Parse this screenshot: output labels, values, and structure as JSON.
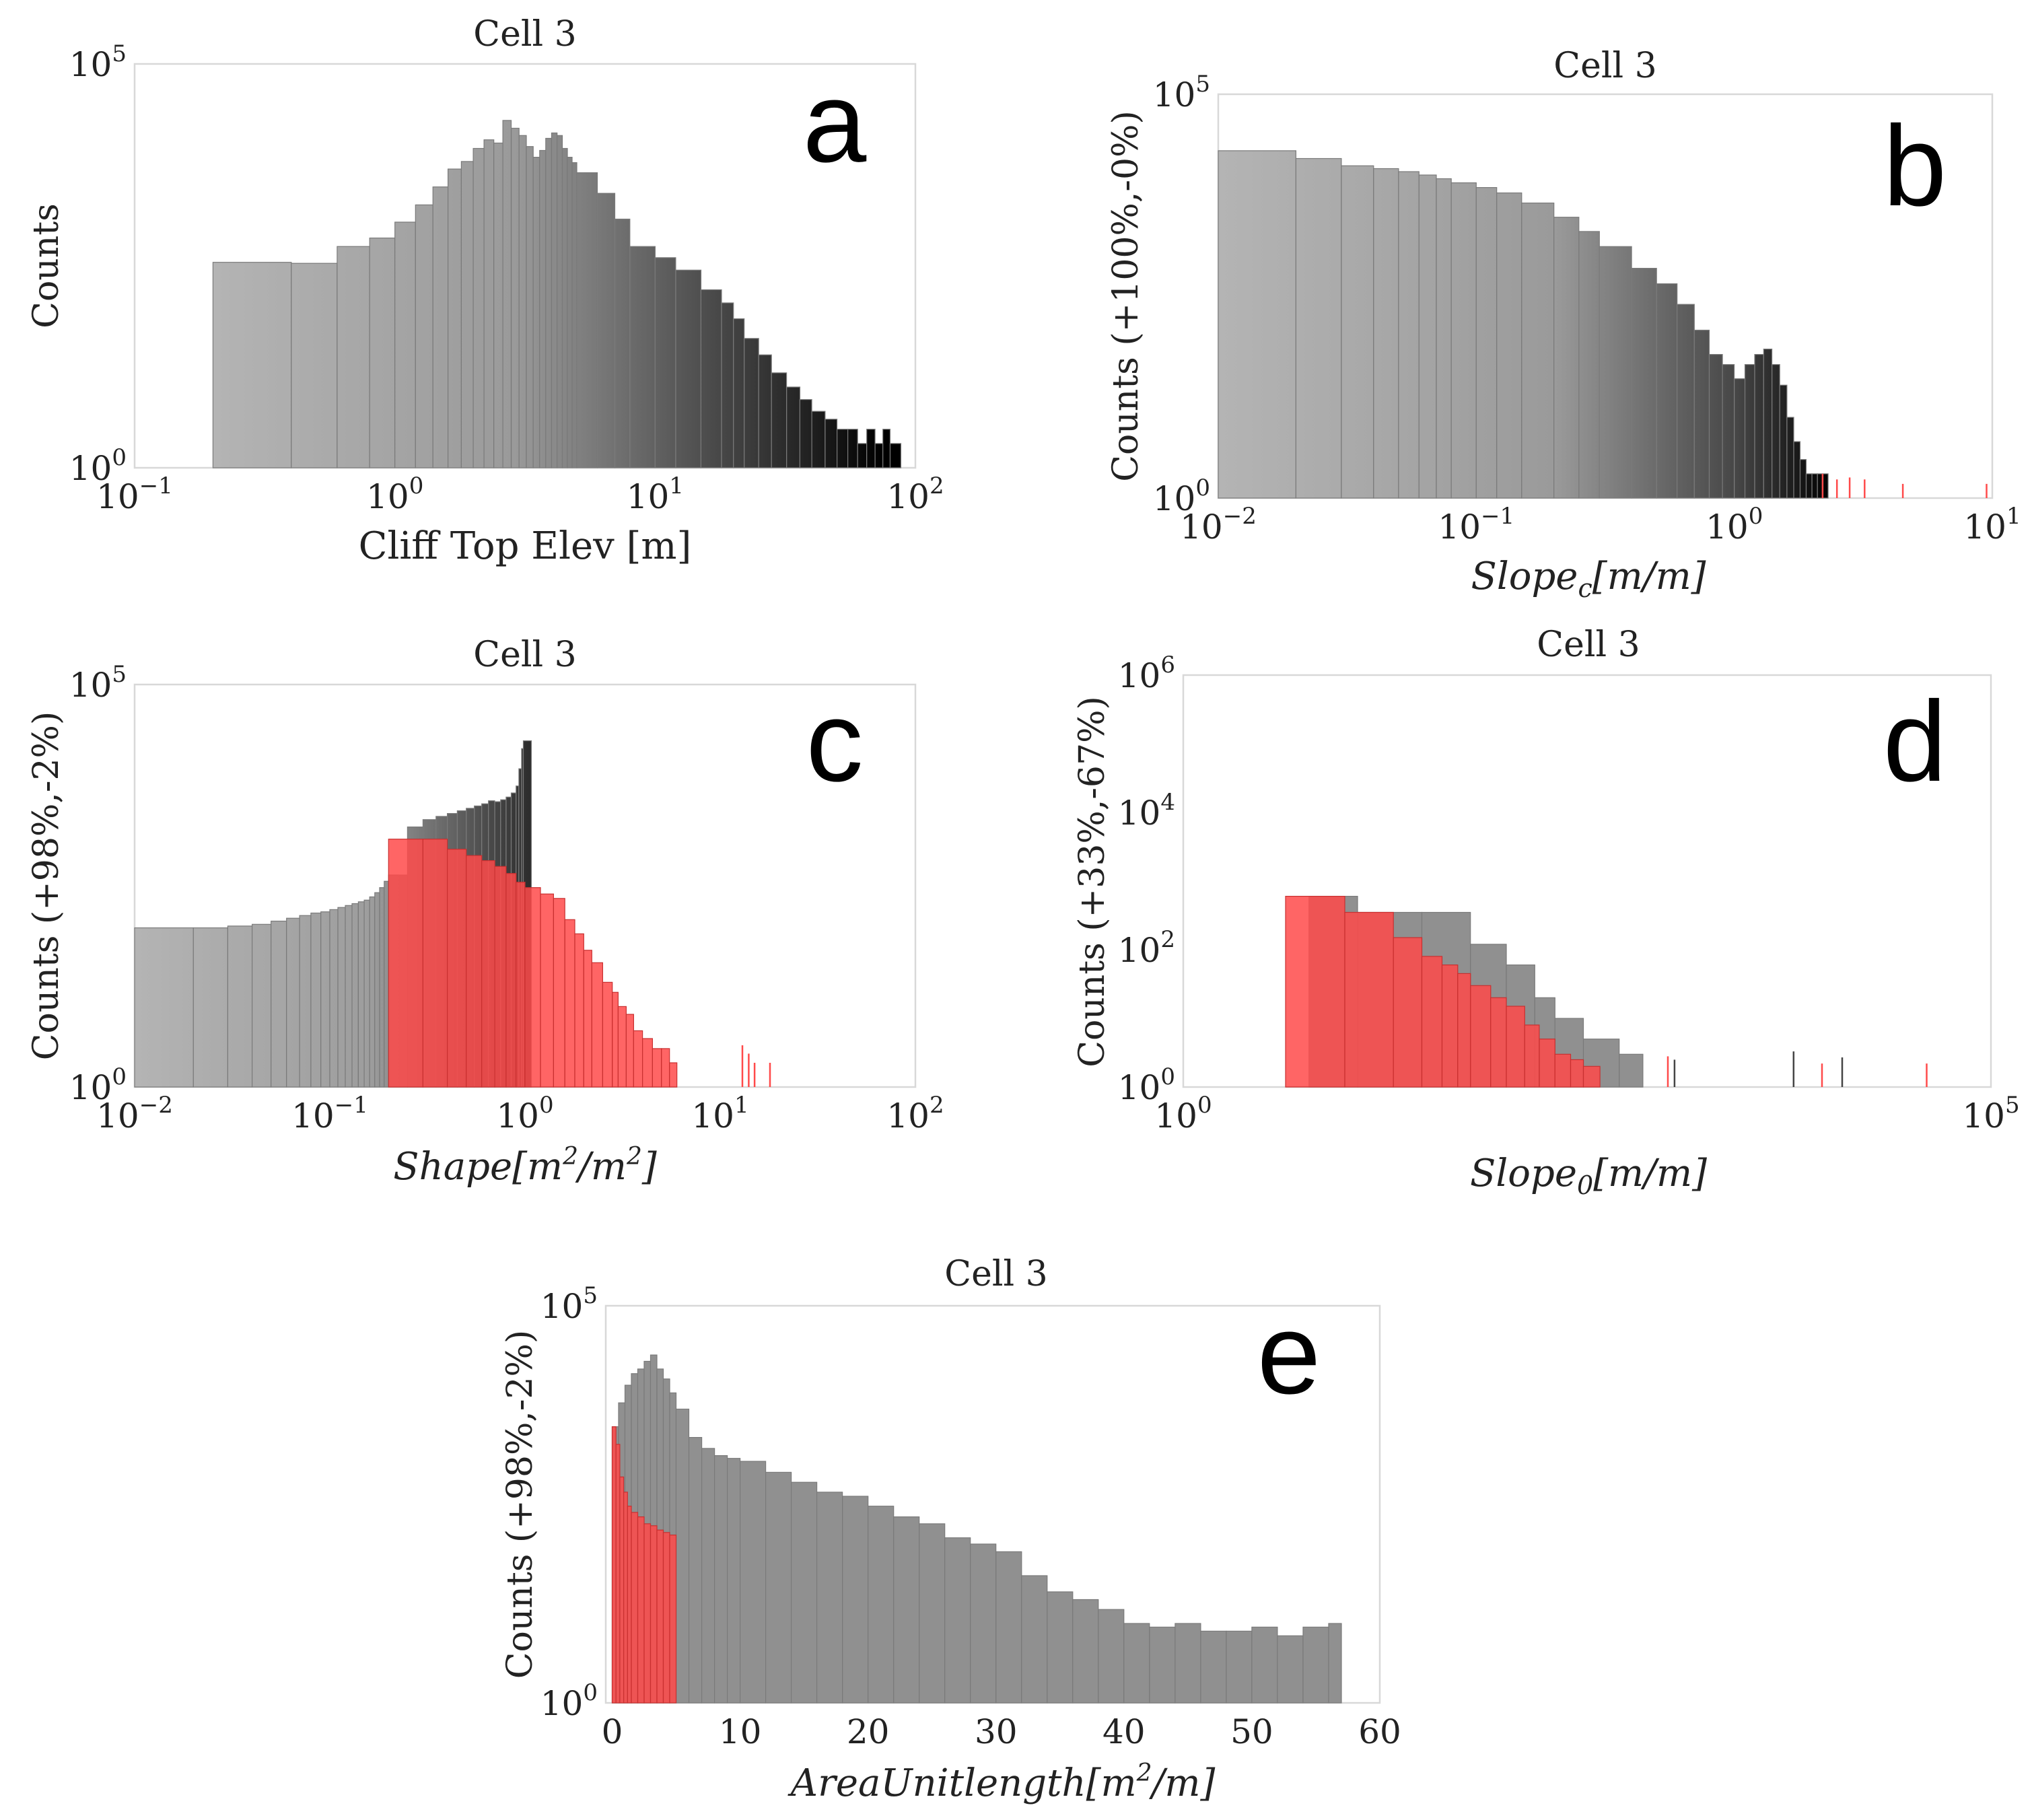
{
  "figure": {
    "colors": {
      "gray_light": "#b4b4b4",
      "gray_mid": "#909090",
      "gray_dark": "#000000",
      "red": "#ff4a4a",
      "red_dark": "#d42a2a",
      "axis": "#d0d0d0",
      "text": "#222222"
    }
  },
  "chart_data": [
    {
      "id": "a",
      "type": "bar",
      "scale": {
        "x": "log",
        "y": "log"
      },
      "title": "Cell 3",
      "panel_label": "a",
      "xlabel": "Cliff Top Elev [m]",
      "ylabel": "Counts",
      "xlim": [
        0.1,
        100
      ],
      "ylim": [
        1,
        100000
      ],
      "xticks": [
        {
          "base": "10",
          "exp": "−1"
        },
        {
          "base": "10",
          "exp": "0"
        },
        {
          "base": "10",
          "exp": "1"
        },
        {
          "base": "10",
          "exp": "2"
        }
      ],
      "yticks": [
        {
          "base": "10",
          "exp": "0"
        },
        {
          "base": "10",
          "exp": "5"
        }
      ],
      "series": [
        {
          "name": "all",
          "style": "gradient",
          "x": [
            0.2,
            0.4,
            0.6,
            0.8,
            1.0,
            1.2,
            1.4,
            1.6,
            1.8,
            2.0,
            2.2,
            2.4,
            2.6,
            2.8,
            3.0,
            3.2,
            3.4,
            3.6,
            3.8,
            4.0,
            4.2,
            4.4,
            4.6,
            4.8,
            5.0,
            6.0,
            7.0,
            8.0,
            10.0,
            12.0,
            15.0,
            18.0,
            20.0,
            22.0,
            25.0,
            28.0,
            32.0,
            36.0,
            40.0,
            45.0,
            50.0,
            55.0,
            60.0,
            65.0,
            70.0,
            75.0,
            80.0
          ],
          "values": [
            350,
            340,
            550,
            700,
            1100,
            1800,
            3000,
            5000,
            6200,
            9000,
            11500,
            10500,
            20000,
            16000,
            13000,
            9500,
            7000,
            8500,
            12000,
            14000,
            13000,
            9000,
            7000,
            6000,
            4500,
            2500,
            1200,
            550,
            400,
            280,
            160,
            110,
            70,
            40,
            25,
            15,
            10,
            7,
            5,
            4,
            3,
            3,
            2,
            3,
            2,
            3,
            2
          ]
        }
      ]
    },
    {
      "id": "b",
      "type": "bar",
      "scale": {
        "x": "log",
        "y": "log"
      },
      "title": "Cell 3",
      "panel_label": "b",
      "xlabel": "Slope_c[m/m]",
      "ylabel": "Counts (+100%,-0%)",
      "xlim": [
        0.01,
        10
      ],
      "ylim": [
        1,
        100000
      ],
      "xticks": [
        {
          "base": "10",
          "exp": "−2"
        },
        {
          "base": "10",
          "exp": "−1"
        },
        {
          "base": "10",
          "exp": "0"
        },
        {
          "base": "10",
          "exp": "1"
        }
      ],
      "yticks": [
        {
          "base": "10",
          "exp": "0"
        },
        {
          "base": "10",
          "exp": "5"
        }
      ],
      "series": [
        {
          "name": "all",
          "style": "gradient",
          "x": [
            0.01,
            0.02,
            0.03,
            0.04,
            0.05,
            0.06,
            0.07,
            0.08,
            0.1,
            0.12,
            0.15,
            0.2,
            0.25,
            0.3,
            0.4,
            0.5,
            0.6,
            0.7,
            0.8,
            0.9,
            1.0,
            1.1,
            1.2,
            1.3,
            1.4,
            1.5,
            1.6,
            1.7,
            1.8,
            1.9,
            2.0,
            2.1
          ],
          "values": [
            20000,
            16000,
            13000,
            12000,
            11000,
            10000,
            9000,
            8000,
            7000,
            6000,
            4500,
            3000,
            2000,
            1300,
            700,
            450,
            250,
            120,
            60,
            45,
            30,
            45,
            60,
            70,
            45,
            25,
            10,
            5,
            3,
            2,
            2,
            2
          ]
        },
        {
          "name": "outliers",
          "style": "ticks",
          "x": [
            2.2,
            2.5,
            2.8,
            3.2,
            4.5,
            9.5
          ],
          "values": [
            2,
            1.7,
            1.8,
            1.7,
            1.5,
            1.5
          ]
        }
      ]
    },
    {
      "id": "c",
      "type": "bar",
      "scale": {
        "x": "log",
        "y": "log"
      },
      "title": "Cell 3",
      "panel_label": "c",
      "xlabel": "Shape[m^2/m^2]",
      "ylabel": "Counts (+98%,-2%)",
      "xlim": [
        0.01,
        100
      ],
      "ylim": [
        1,
        100000
      ],
      "xticks": [
        {
          "base": "10",
          "exp": "−2"
        },
        {
          "base": "10",
          "exp": "−1"
        },
        {
          "base": "10",
          "exp": "0"
        },
        {
          "base": "10",
          "exp": "1"
        },
        {
          "base": "10",
          "exp": "2"
        }
      ],
      "yticks": [
        {
          "base": "10",
          "exp": "0"
        },
        {
          "base": "10",
          "exp": "5"
        }
      ],
      "series": [
        {
          "name": "gray",
          "style": "gradient",
          "x": [
            0.01,
            0.02,
            0.03,
            0.04,
            0.05,
            0.06,
            0.07,
            0.08,
            0.09,
            0.1,
            0.11,
            0.12,
            0.13,
            0.14,
            0.15,
            0.16,
            0.17,
            0.18,
            0.19,
            0.2,
            0.25,
            0.3,
            0.35,
            0.4,
            0.45,
            0.5,
            0.55,
            0.6,
            0.65,
            0.7,
            0.75,
            0.8,
            0.85,
            0.9,
            0.93,
            0.96,
            0.98
          ],
          "values": [
            95,
            95,
            100,
            105,
            115,
            125,
            135,
            145,
            150,
            160,
            170,
            180,
            190,
            200,
            210,
            230,
            260,
            300,
            360,
            430,
            1700,
            2100,
            2300,
            2500,
            2700,
            2900,
            3100,
            3300,
            3600,
            3500,
            3700,
            4000,
            4500,
            5500,
            9000,
            16000,
            20000
          ]
        },
        {
          "name": "red",
          "style": "red",
          "x": [
            0.2,
            0.3,
            0.4,
            0.5,
            0.6,
            0.7,
            0.8,
            0.9,
            1.0,
            1.2,
            1.4,
            1.6,
            1.8,
            2.0,
            2.2,
            2.5,
            2.8,
            3.0,
            3.3,
            3.6,
            4.0,
            4.5,
            5.0,
            5.5
          ],
          "values": [
            1200,
            1200,
            900,
            750,
            650,
            550,
            450,
            350,
            300,
            250,
            220,
            120,
            80,
            50,
            35,
            20,
            15,
            10,
            8,
            5,
            4,
            3,
            3,
            2
          ],
          "x_end": 6.0
        },
        {
          "name": "red_outliers",
          "style": "ticks",
          "x": [
            13.0,
            14.0,
            15.0,
            18.0
          ],
          "values": [
            3.3,
            2.6,
            2.0,
            2.0
          ]
        }
      ]
    },
    {
      "id": "d",
      "type": "bar",
      "scale": {
        "x": "log",
        "y": "log"
      },
      "title": "Cell 3",
      "panel_label": "d",
      "xlabel": "Slope_0[m/m]",
      "ylabel": "Counts (+33%,-67%)",
      "xlim": [
        1,
        100000
      ],
      "ylim": [
        1,
        1000000
      ],
      "xticks": [
        {
          "base": "10",
          "exp": "0"
        },
        {
          "base": "10",
          "exp": "5"
        }
      ],
      "yticks": [
        {
          "base": "10",
          "exp": "0"
        },
        {
          "base": "10",
          "exp": "2"
        },
        {
          "base": "10",
          "exp": "4"
        },
        {
          "base": "10",
          "exp": "6"
        }
      ],
      "series": [
        {
          "name": "gray",
          "style": "gray",
          "x": [
            6.0,
            12.0,
            30.0,
            60.0,
            100.0,
            150.0,
            200.0,
            300.0,
            500.0
          ],
          "values": [
            600,
            350,
            350,
            120,
            60,
            20,
            10,
            5,
            3
          ],
          "x_end": 700.0
        },
        {
          "name": "red",
          "style": "red",
          "x": [
            4.3,
            10.0,
            20.0,
            30.0,
            40.0,
            50.0,
            60.0,
            80.0,
            100.0,
            130.0,
            160.0,
            200.0,
            250.0,
            300.0
          ],
          "values": [
            600,
            350,
            150,
            80,
            60,
            45,
            30,
            20,
            15,
            8,
            5,
            3,
            2.5,
            2
          ],
          "x_end": 380.0
        },
        {
          "name": "gray_outliers",
          "style": "gray_ticks",
          "x": [
            1100.0,
            6000.0,
            12000.0
          ],
          "values": [
            2.5,
            3.3,
            2.7
          ]
        },
        {
          "name": "red_outliers",
          "style": "ticks",
          "x": [
            1000.0,
            9000.0,
            40000.0
          ],
          "values": [
            2.8,
            2.2,
            2.2
          ]
        }
      ]
    },
    {
      "id": "e",
      "type": "bar",
      "scale": {
        "x": "linear",
        "y": "log"
      },
      "title": "Cell 3",
      "panel_label": "e",
      "xlabel": "AreaUnitlength[m^2/m]",
      "ylabel": "Counts (+98%,-2%)",
      "xlim": [
        -0.5,
        60
      ],
      "ylim": [
        1,
        100000
      ],
      "xticks": [
        {
          "base": "0",
          "exp": ""
        },
        {
          "base": "10",
          "exp": ""
        },
        {
          "base": "20",
          "exp": ""
        },
        {
          "base": "30",
          "exp": ""
        },
        {
          "base": "40",
          "exp": ""
        },
        {
          "base": "50",
          "exp": ""
        },
        {
          "base": "60",
          "exp": ""
        }
      ],
      "yticks": [
        {
          "base": "10",
          "exp": "0"
        },
        {
          "base": "10",
          "exp": "5"
        }
      ],
      "series": [
        {
          "name": "gray",
          "style": "gray",
          "x": [
            0,
            0.5,
            1,
            1.5,
            2,
            2.5,
            3,
            3.5,
            4,
            4.5,
            5,
            6,
            7,
            8,
            9,
            10,
            12,
            14,
            16,
            18,
            20,
            22,
            24,
            26,
            28,
            30,
            32,
            34,
            36,
            38,
            40,
            42,
            44,
            46,
            48,
            50,
            52,
            54,
            56
          ],
          "values": [
            3000,
            6000,
            10000,
            14000,
            16000,
            20000,
            24000,
            16000,
            12000,
            8000,
            5000,
            2200,
            1600,
            1300,
            1200,
            1100,
            800,
            600,
            450,
            400,
            300,
            220,
            180,
            120,
            100,
            80,
            40,
            25,
            20,
            15,
            10,
            9,
            10,
            8,
            8,
            9,
            7,
            9,
            10
          ],
          "x_end": 57
        },
        {
          "name": "red",
          "style": "red",
          "x": [
            0,
            0.3,
            0.6,
            0.9,
            1.2,
            1.5,
            2,
            2.5,
            3,
            3.5,
            4,
            4.5
          ],
          "values": [
            3000,
            1800,
            700,
            450,
            300,
            250,
            220,
            180,
            170,
            150,
            140,
            130
          ],
          "x_end": 5
        }
      ]
    }
  ]
}
